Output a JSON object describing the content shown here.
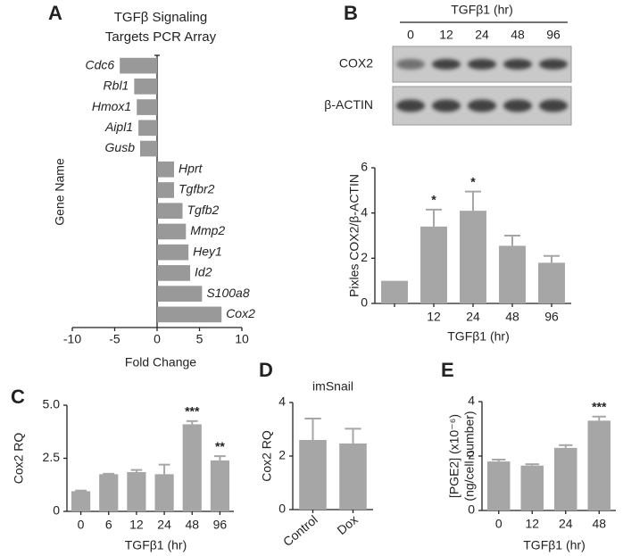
{
  "chart_data": [
    {
      "panel": "A",
      "type": "bar",
      "orientation": "horizontal",
      "title": [
        "TGFβ Signaling",
        "Targets PCR Array"
      ],
      "xlabel": "Fold Change",
      "ylabel": "Gene Name",
      "categories": [
        "Cdc6",
        "Rbl1",
        "Hmox1",
        "Aipl1",
        "Gusb",
        "Hprt",
        "Tgfbr2",
        "Tgfb2",
        "Mmp2",
        "Hey1",
        "Id2",
        "S100a8",
        "Cox2"
      ],
      "values": [
        -4.4,
        -2.7,
        -2.4,
        -2.2,
        -2,
        2,
        2,
        3,
        3.4,
        3.7,
        3.9,
        5.3,
        7.6
      ],
      "color": "#999999",
      "xlim": [
        -10,
        10
      ],
      "xticks": [
        -10,
        -5,
        0,
        5,
        10
      ]
    },
    {
      "panel": "B",
      "type": "bar",
      "blot": {
        "title": "TGFβ1 (hr)",
        "lanes": [
          "0",
          "12",
          "24",
          "48",
          "96"
        ],
        "rows": [
          "COX2",
          "β-ACTIN"
        ]
      },
      "ylabel": "Pixles COX2/β-ACTIN",
      "xlabel": "TGFβ1 (hr)",
      "categories": [
        null,
        "12",
        "24",
        "48",
        "96"
      ],
      "values": [
        1,
        3.4,
        4.1,
        2.55,
        1.8
      ],
      "errors": [
        null,
        0.75,
        0.85,
        0.45,
        0.3
      ],
      "significance": [
        null,
        "*",
        "*",
        null,
        null
      ],
      "color": "#a6a6a6",
      "ylim": [
        0,
        6
      ],
      "yticks": [
        0,
        2,
        4,
        6
      ]
    },
    {
      "panel": "C",
      "type": "bar",
      "ylabel": "Cox2 RQ",
      "xlabel": "TGFβ1 (hr)",
      "categories": [
        "0",
        "6",
        "12",
        "24",
        "48",
        "96"
      ],
      "values": [
        0.95,
        1.75,
        1.85,
        1.75,
        4.1,
        2.4
      ],
      "errors": [
        0.03,
        0.02,
        0.1,
        0.45,
        0.15,
        0.2
      ],
      "significance": [
        null,
        null,
        null,
        null,
        "***",
        "**"
      ],
      "color": "#a6a6a6",
      "ylim": [
        0,
        5
      ],
      "yticks": [
        0,
        2.5,
        {
          "value": 5,
          "label": "5.0"
        }
      ]
    },
    {
      "panel": "D",
      "type": "bar",
      "title": "imSnail",
      "ylabel": "Cox2 RQ",
      "categories": [
        "Control",
        "Dox"
      ],
      "values": [
        2.6,
        2.47
      ],
      "errors": [
        0.8,
        0.55
      ],
      "color": "#a6a6a6",
      "ylim": [
        0,
        4
      ],
      "yticks": [
        0,
        2,
        4
      ]
    },
    {
      "panel": "E",
      "type": "bar",
      "ylabel": [
        "[PGE2] (x10⁻⁶)",
        "(ng/cell number)"
      ],
      "xlabel": "TGFβ1 (hr)",
      "categories": [
        "0",
        "12",
        "24",
        "48"
      ],
      "values": [
        1.8,
        1.65,
        2.3,
        3.3
      ],
      "errors": [
        0.07,
        0.05,
        0.1,
        0.15
      ],
      "significance": [
        null,
        null,
        null,
        "***"
      ],
      "color": "#a6a6a6",
      "ylim": [
        0,
        4
      ],
      "yticks": [
        0,
        2,
        4
      ]
    }
  ]
}
